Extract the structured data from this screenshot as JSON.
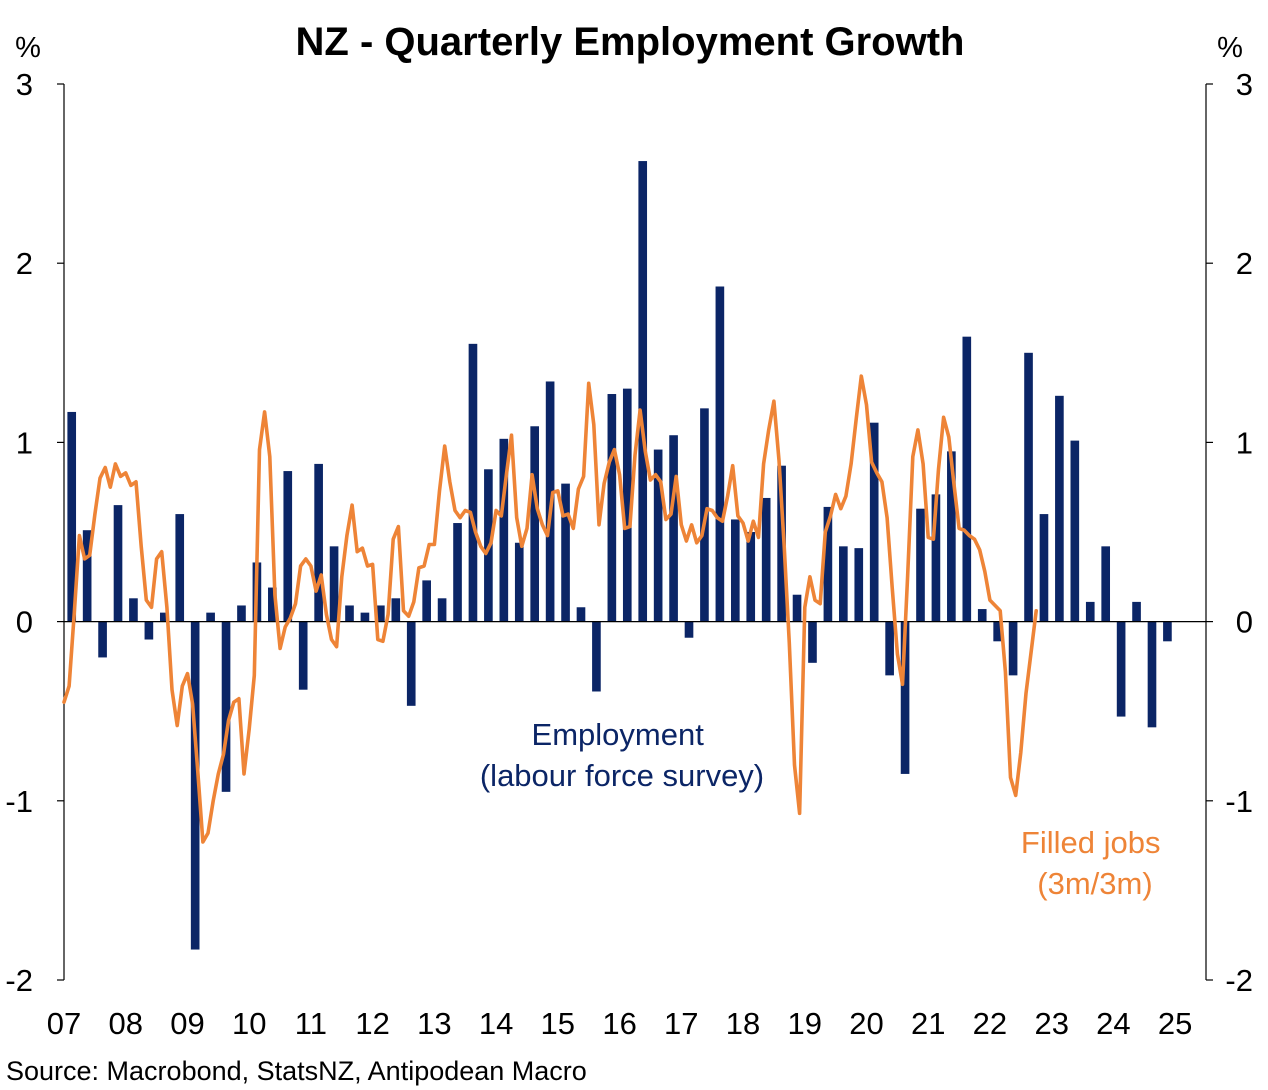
{
  "chart_data": {
    "type": "bar",
    "title": "NZ - Quarterly Employment Growth",
    "unit_left": "%",
    "unit_right": "%",
    "ylim": [
      -2,
      3
    ],
    "yticks": [
      "3",
      "2",
      "1",
      "0",
      "-1",
      "-2"
    ],
    "ytick_values": [
      3,
      2,
      1,
      0,
      -1,
      -2
    ],
    "x_range": [
      2007.0,
      2025.5
    ],
    "year_labels": [
      "07",
      "08",
      "09",
      "10",
      "11",
      "12",
      "13",
      "14",
      "15",
      "16",
      "17",
      "18",
      "19",
      "20",
      "21",
      "22",
      "23",
      "24",
      "25"
    ],
    "grid": false,
    "colors": {
      "employment": "#0b2566",
      "filled_jobs": "#ee8437",
      "axis": "#000000"
    },
    "series": [
      {
        "name": "Employment (labour force survey)",
        "type": "bar",
        "frequency": "quarterly",
        "start": 2007.0,
        "values": [
          1.17,
          0.51,
          -0.2,
          0.65,
          0.13,
          -0.1,
          0.05,
          0.6,
          -1.83,
          0.05,
          -0.95,
          0.09,
          0.33,
          0.19,
          0.84,
          -0.38,
          0.88,
          0.42,
          0.09,
          0.05,
          0.09,
          0.13,
          -0.47,
          0.23,
          0.13,
          0.55,
          1.55,
          0.85,
          1.02,
          0.44,
          1.09,
          1.34,
          0.77,
          0.08,
          -0.39,
          1.27,
          1.3,
          2.57,
          0.96,
          1.04,
          -0.09,
          1.19,
          1.87,
          0.57,
          0.5,
          0.69,
          0.87,
          0.15,
          -0.23,
          0.64,
          0.42,
          0.41,
          1.11,
          -0.3,
          -0.85,
          0.63,
          0.71,
          0.95,
          1.59,
          0.07,
          -0.11,
          -0.3,
          1.5,
          0.6,
          1.26,
          1.01,
          0.11,
          0.42,
          -0.53,
          0.11,
          -0.59,
          -0.11
        ]
      },
      {
        "name": "Filled jobs (3m/3m)",
        "type": "line",
        "frequency": "monthly",
        "start": 2007.0,
        "values": [
          -0.45,
          -0.36,
          0.05,
          0.48,
          0.35,
          0.37,
          0.6,
          0.8,
          0.86,
          0.75,
          0.88,
          0.81,
          0.83,
          0.76,
          0.78,
          0.42,
          0.12,
          0.08,
          0.35,
          0.39,
          0.08,
          -0.38,
          -0.58,
          -0.36,
          -0.29,
          -0.46,
          -0.83,
          -1.23,
          -1.18,
          -1.0,
          -0.85,
          -0.74,
          -0.55,
          -0.45,
          -0.43,
          -0.85,
          -0.6,
          -0.3,
          0.96,
          1.17,
          0.92,
          0.15,
          -0.15,
          -0.03,
          0.02,
          0.1,
          0.31,
          0.35,
          0.31,
          0.17,
          0.26,
          0.04,
          -0.1,
          -0.14,
          0.25,
          0.48,
          0.65,
          0.39,
          0.41,
          0.31,
          0.32,
          -0.1,
          -0.11,
          0.04,
          0.46,
          0.53,
          0.06,
          0.03,
          0.11,
          0.3,
          0.31,
          0.43,
          0.43,
          0.73,
          0.98,
          0.78,
          0.62,
          0.58,
          0.62,
          0.61,
          0.5,
          0.42,
          0.38,
          0.44,
          0.62,
          0.59,
          0.82,
          1.04,
          0.58,
          0.42,
          0.52,
          0.82,
          0.63,
          0.54,
          0.48,
          0.72,
          0.73,
          0.59,
          0.6,
          0.52,
          0.74,
          0.81,
          1.33,
          1.1,
          0.54,
          0.77,
          0.89,
          0.96,
          0.82,
          0.52,
          0.53,
          0.93,
          1.18,
          0.95,
          0.79,
          0.82,
          0.78,
          0.57,
          0.6,
          0.81,
          0.54,
          0.45,
          0.54,
          0.44,
          0.48,
          0.63,
          0.62,
          0.58,
          0.56,
          0.7,
          0.87,
          0.59,
          0.55,
          0.45,
          0.56,
          0.47,
          0.88,
          1.07,
          1.23,
          0.9,
          0.42,
          -0.12,
          -0.8,
          -1.07,
          0.08,
          0.25,
          0.12,
          0.1,
          0.5,
          0.59,
          0.71,
          0.63,
          0.7,
          0.88,
          1.13,
          1.37,
          1.21,
          0.89,
          0.83,
          0.78,
          0.58,
          0.19,
          -0.18,
          -0.35,
          0.25,
          0.92,
          1.07,
          0.88,
          0.47,
          0.46,
          0.85,
          1.14,
          1.03,
          0.77,
          0.52,
          0.51,
          0.48,
          0.46,
          0.4,
          0.28,
          0.12,
          0.09,
          0.06,
          -0.28,
          -0.87,
          -0.97,
          -0.73,
          -0.4,
          -0.17,
          0.06
        ]
      }
    ],
    "annotations": [
      {
        "series": "employment",
        "lines": [
          "Employment",
          "(labour force survey)"
        ]
      },
      {
        "series": "filled_jobs",
        "lines": [
          "Filled jobs",
          "(3m/3m)"
        ]
      }
    ],
    "source": "Source: Macrobond, StatsNZ, Antipodean Macro"
  }
}
